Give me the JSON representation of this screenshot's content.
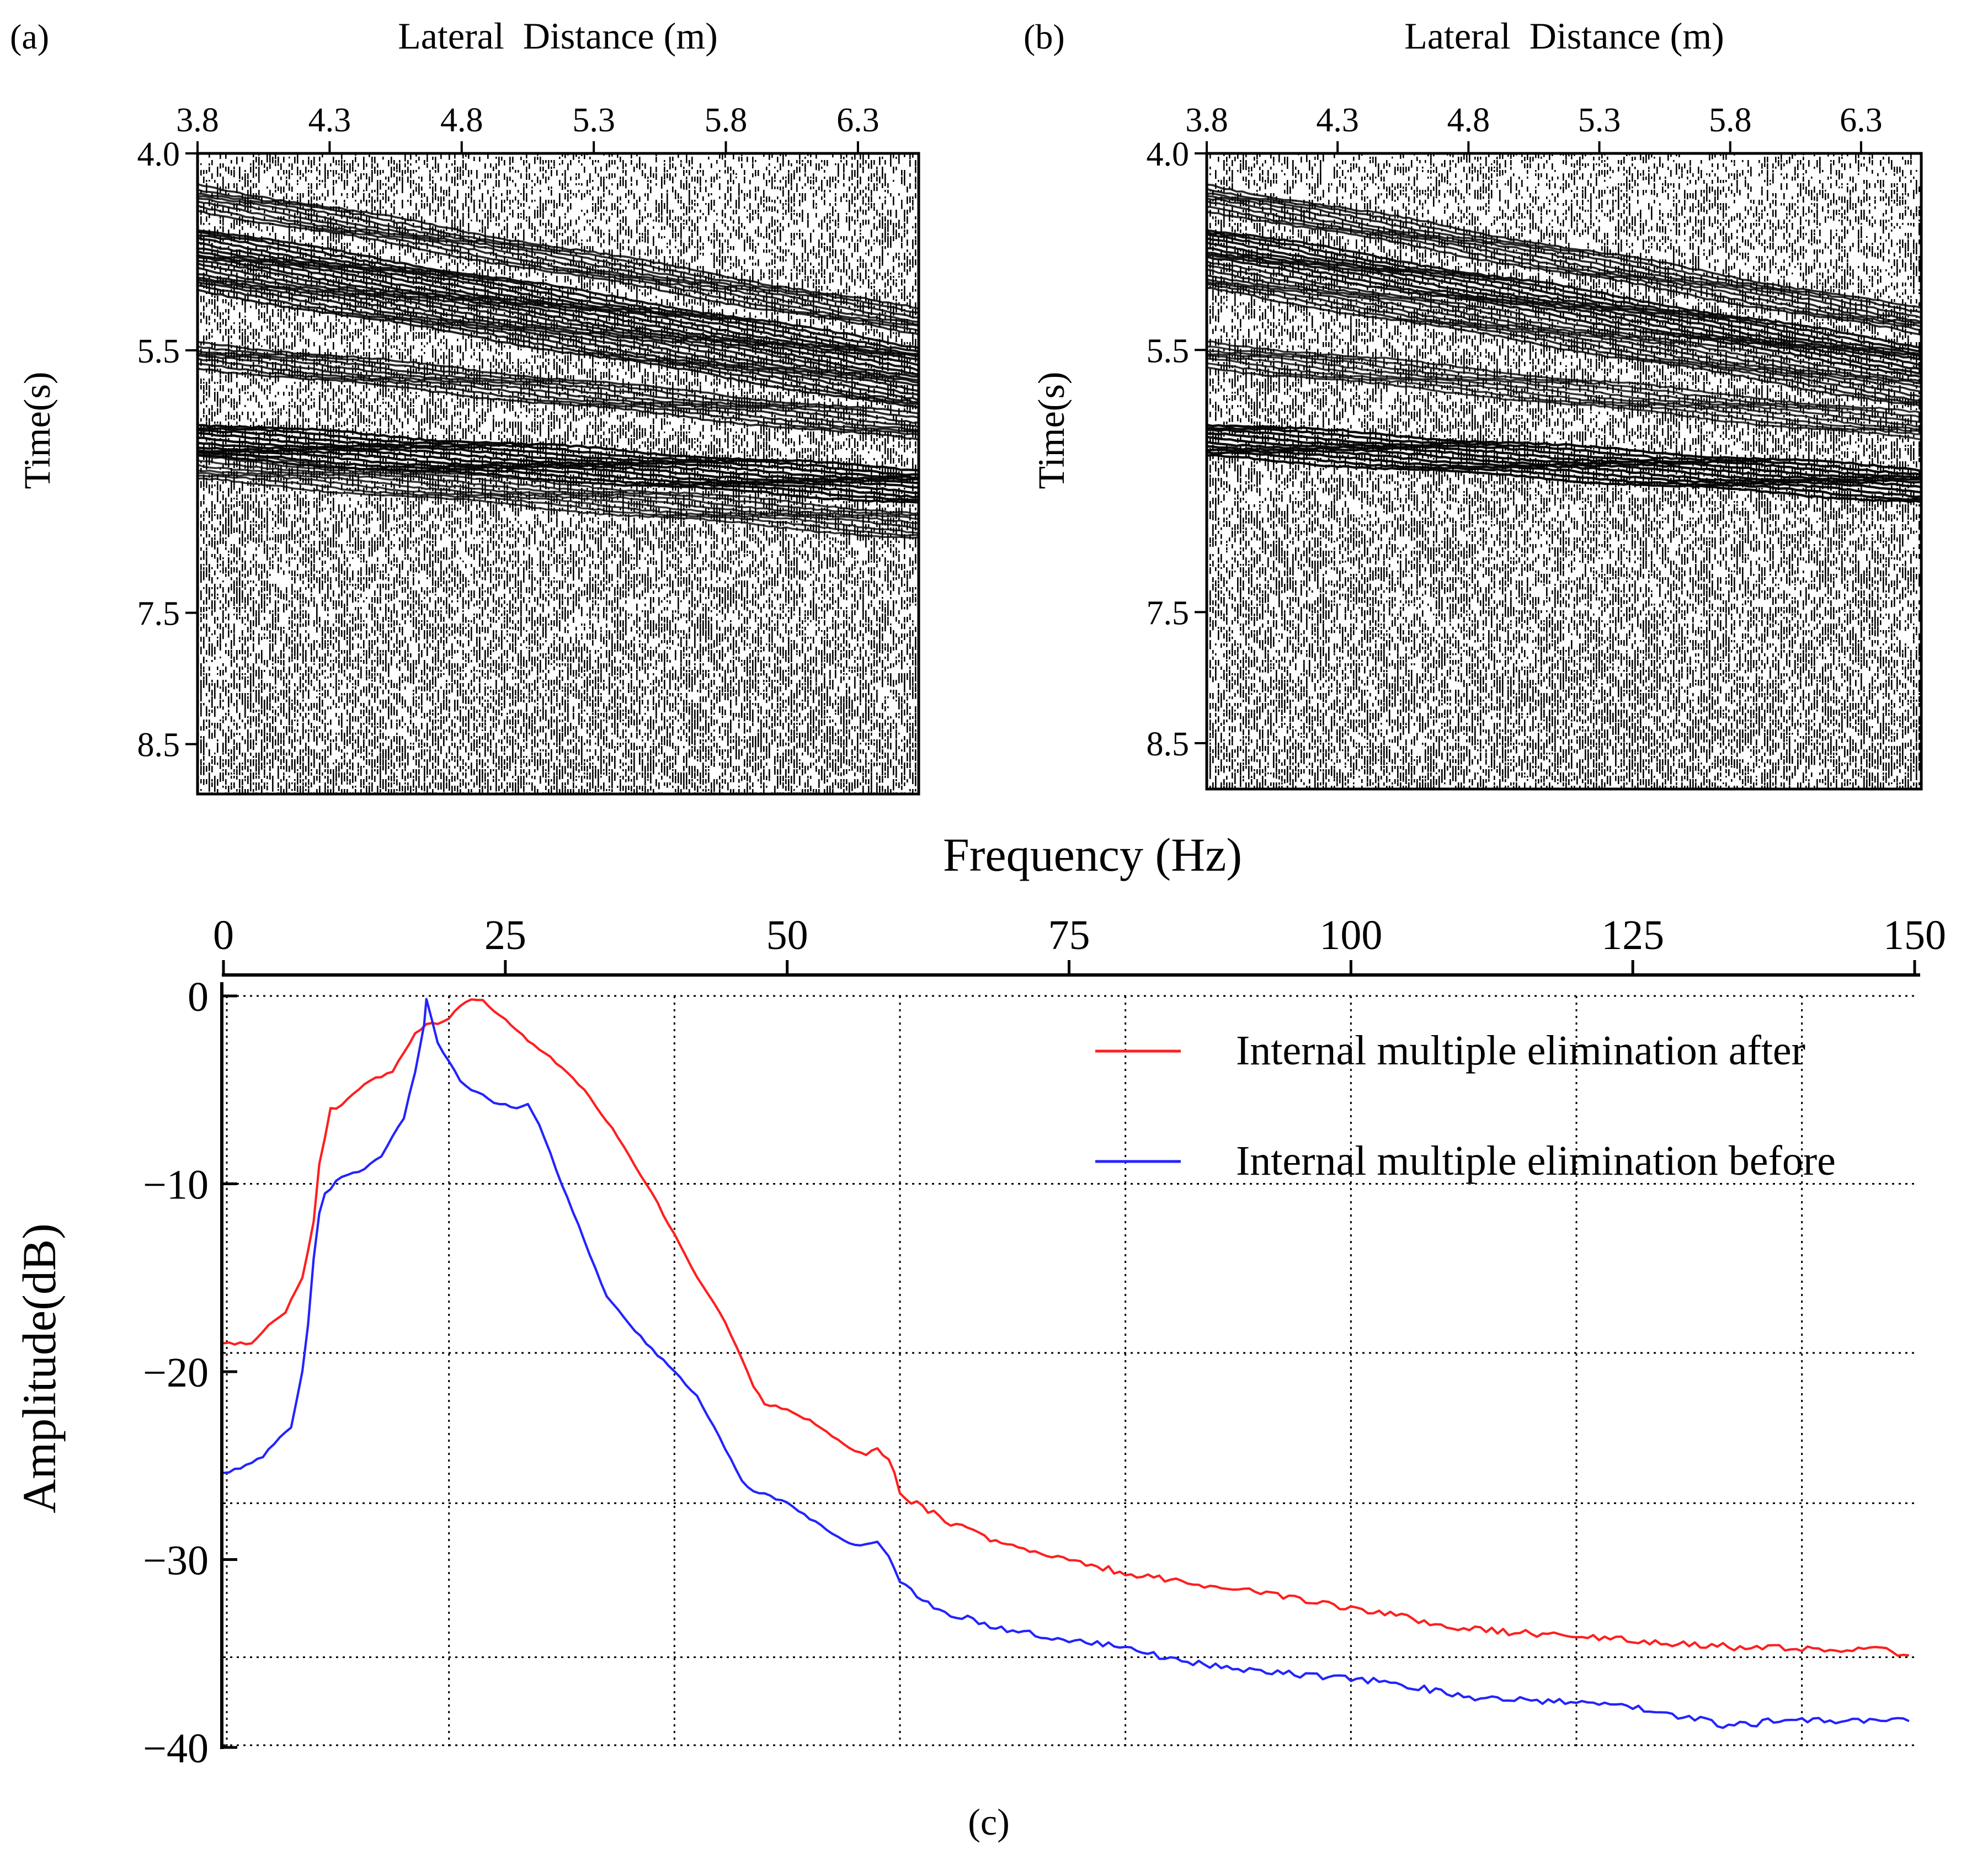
{
  "figure": {
    "panel_a": "(a)",
    "panel_b": "(b)",
    "panel_c": "(c)"
  },
  "chart_data": [
    {
      "id": "panel-a",
      "type": "heatmap",
      "description_kind": "seismic section",
      "xlabel": "Lateral  Distance (m)",
      "ylabel": "Time(s)",
      "xticks": [
        "3.8",
        "4.3",
        "4.8",
        "5.3",
        "5.8",
        "6.3"
      ],
      "xtick_values": [
        3.8,
        4.3,
        4.8,
        5.3,
        5.8,
        6.3
      ],
      "yticks": [
        "4.0",
        "5.5",
        "7.5",
        "8.5"
      ],
      "ytick_values": [
        4.0,
        5.5,
        7.5,
        8.5
      ],
      "xlim": [
        3.8,
        6.53
      ],
      "ylim": [
        4.0,
        8.88
      ],
      "reflectors": [
        {
          "t0": 4.35,
          "t1": 5.3,
          "strength": 0.7
        },
        {
          "t0": 4.7,
          "t1": 5.6,
          "strength": 0.9
        },
        {
          "t0": 4.95,
          "t1": 5.85,
          "strength": 0.8
        },
        {
          "t0": 5.55,
          "t1": 6.1,
          "strength": 0.7
        },
        {
          "t0": 6.2,
          "t1": 6.55,
          "strength": 1.0
        },
        {
          "t0": 6.4,
          "t1": 6.85,
          "strength": 0.6
        }
      ]
    },
    {
      "id": "panel-b",
      "type": "heatmap",
      "description_kind": "seismic section",
      "xlabel": "Lateral  Distance (m)",
      "ylabel": "Time(s)",
      "xticks": [
        "3.8",
        "4.3",
        "4.8",
        "5.3",
        "5.8",
        "6.3"
      ],
      "xtick_values": [
        3.8,
        4.3,
        4.8,
        5.3,
        5.8,
        6.3
      ],
      "yticks": [
        "4.0",
        "5.5",
        "7.5",
        "8.5"
      ],
      "ytick_values": [
        4.0,
        5.5,
        7.5,
        8.5
      ],
      "xlim": [
        3.8,
        6.53
      ],
      "ylim": [
        4.0,
        8.85
      ],
      "reflectors": [
        {
          "t0": 4.35,
          "t1": 5.3,
          "strength": 0.7
        },
        {
          "t0": 4.7,
          "t1": 5.6,
          "strength": 0.9
        },
        {
          "t0": 4.95,
          "t1": 5.85,
          "strength": 0.7
        },
        {
          "t0": 5.55,
          "t1": 6.1,
          "strength": 0.6
        },
        {
          "t0": 6.2,
          "t1": 6.55,
          "strength": 1.0
        }
      ]
    },
    {
      "id": "panel-c",
      "type": "line",
      "title": "Frequency (Hz)",
      "xlabel": "Frequency (Hz)",
      "ylabel": "Amplitude(dB)",
      "xlim": [
        0,
        150
      ],
      "ylim": [
        -40,
        0
      ],
      "xticks": [
        "0",
        "25",
        "50",
        "75",
        "100",
        "125",
        "150"
      ],
      "xtick_values": [
        0,
        25,
        50,
        75,
        100,
        125,
        150
      ],
      "yticks": [
        "0",
        "−10",
        "−20",
        "−30",
        "−40"
      ],
      "ytick_values": [
        0,
        -10,
        -20,
        -30,
        -40
      ],
      "grid": "dotted",
      "grid_x": [
        20,
        40,
        60,
        80,
        100,
        120,
        140
      ],
      "grid_y": [
        0,
        -10,
        -19,
        -27,
        -35.2
      ],
      "legend_position": "top-right",
      "series": [
        {
          "name": "Internal multiple elimination after",
          "color": "#ff1e1e",
          "x": [
            0,
            2.5,
            4,
            5.5,
            7,
            8,
            8.5,
            9.5,
            10,
            11,
            12,
            13,
            14,
            15,
            16,
            17,
            18,
            19,
            20,
            21,
            22,
            23,
            24,
            25,
            26,
            27,
            28,
            30,
            32,
            35,
            38,
            40,
            42,
            44,
            46,
            47,
            48,
            50,
            52,
            54,
            55,
            56,
            57,
            58,
            59,
            59.5,
            60,
            62,
            65,
            70,
            75,
            80,
            85,
            90,
            95,
            100,
            105,
            110,
            115,
            120,
            125,
            130,
            135,
            138,
            140,
            142,
            145,
            148,
            149.5
          ],
          "y": [
            -18.5,
            -18.5,
            -17.5,
            -16.8,
            -15,
            -12,
            -9,
            -6,
            -6,
            -5.5,
            -5,
            -4.5,
            -4.3,
            -4,
            -3,
            -2,
            -1.5,
            -1.5,
            -1.2,
            -0.5,
            -0.2,
            -0.2,
            -0.8,
            -1.2,
            -1.8,
            -2.4,
            -2.8,
            -3.8,
            -5,
            -7.5,
            -10.5,
            -12.7,
            -15,
            -16.8,
            -19.3,
            -20.8,
            -21.7,
            -22,
            -22.6,
            -23.4,
            -23.8,
            -24.2,
            -24.4,
            -24.1,
            -24.7,
            -25.3,
            -26.5,
            -27.2,
            -28.2,
            -29.3,
            -30.1,
            -30.7,
            -31.2,
            -31.6,
            -32.1,
            -32.6,
            -33.1,
            -33.7,
            -33.9,
            -34.1,
            -34.3,
            -34.5,
            -34.7,
            -34.7,
            -34.7,
            -34.8,
            -34.7,
            -34.9,
            -35.1
          ]
        },
        {
          "name": "Internal multiple elimination before",
          "color": "#2323ff",
          "x": [
            0,
            2,
            3.5,
            5,
            6,
            7,
            7.5,
            8,
            8.5,
            9,
            9.5,
            10,
            11,
            12,
            13,
            14,
            15,
            16,
            17,
            17.8,
            18,
            18.5,
            19,
            20,
            21,
            22,
            23,
            24,
            25,
            26,
            27,
            28,
            29,
            30,
            32,
            34,
            36,
            38,
            40,
            42,
            44,
            46,
            47,
            48,
            50,
            52,
            54,
            55,
            56,
            57,
            58,
            59,
            59.5,
            60,
            62,
            65,
            70,
            75,
            80,
            85,
            90,
            95,
            100,
            105,
            110,
            115,
            120,
            125,
            130,
            133,
            135,
            137,
            140,
            145,
            149.5
          ],
          "y": [
            -25.4,
            -25,
            -24.5,
            -23.5,
            -23,
            -20,
            -17.5,
            -14,
            -11.5,
            -10.5,
            -10.3,
            -9.8,
            -9.5,
            -9.4,
            -9,
            -8.5,
            -7.5,
            -6.5,
            -4,
            -1.5,
            -0.2,
            -1.3,
            -2.5,
            -3.5,
            -4.5,
            -5,
            -5.3,
            -5.7,
            -5.8,
            -6,
            -5.7,
            -6.8,
            -8.4,
            -10,
            -13,
            -16,
            -17.5,
            -18.8,
            -20,
            -21.3,
            -23.5,
            -25.8,
            -26.4,
            -26.5,
            -27,
            -27.8,
            -28.6,
            -29,
            -29.2,
            -29.2,
            -29,
            -29.8,
            -30.5,
            -31.2,
            -32.2,
            -33,
            -33.8,
            -34.3,
            -34.7,
            -35.4,
            -35.9,
            -36.1,
            -36.3,
            -36.7,
            -37.3,
            -37.5,
            -37.6,
            -37.9,
            -38.4,
            -38.8,
            -38.8,
            -38.6,
            -38.6,
            -38.6,
            -38.6
          ]
        }
      ]
    }
  ]
}
